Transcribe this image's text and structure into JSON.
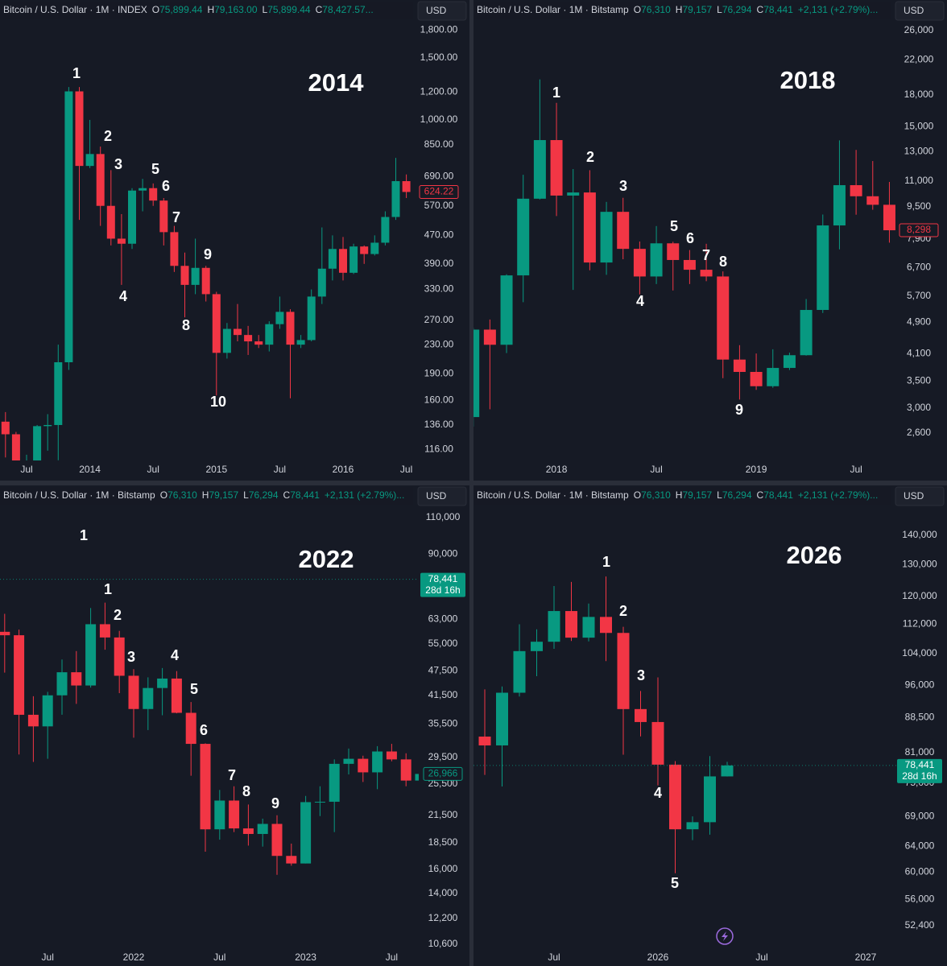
{
  "chart_data": [
    {
      "type": "candlestick",
      "title": "2014",
      "symbol": "Bitcoin / U.S. Dollar · 1M · INDEX",
      "quote": [
        {
          "key": "O",
          "value": "75,899.44"
        },
        {
          "key": "H",
          "value": "79,163.00"
        },
        {
          "key": "L",
          "value": "75,899.44"
        },
        {
          "key": "C",
          "value": "78,427.57..."
        }
      ],
      "currency": "USD",
      "log_scale": true,
      "colors": {
        "up": "#089981",
        "down": "#f23645"
      },
      "ylim": [
        109,
        1890
      ],
      "yticks": [
        {
          "value": 1800,
          "label": "1,800.00"
        },
        {
          "value": 1500,
          "label": "1,500.00"
        },
        {
          "value": 1200,
          "label": "1,200.00"
        },
        {
          "value": 1000,
          "label": "1,000.00"
        },
        {
          "value": 850,
          "label": "850.00"
        },
        {
          "value": 690,
          "label": "690.00"
        },
        {
          "value": 570,
          "label": "570.00"
        },
        {
          "value": 470,
          "label": "470.00"
        },
        {
          "value": 390,
          "label": "390.00"
        },
        {
          "value": 330,
          "label": "330.00"
        },
        {
          "value": 270,
          "label": "270.00"
        },
        {
          "value": 230,
          "label": "230.00"
        },
        {
          "value": 190,
          "label": "190.00"
        },
        {
          "value": 160,
          "label": "160.00"
        },
        {
          "value": 136,
          "label": "136.00"
        },
        {
          "value": 116,
          "label": "116.00"
        }
      ],
      "categories": [
        null,
        null,
        "Jul",
        null,
        null,
        null,
        null,
        null,
        "2014",
        null,
        null,
        null,
        null,
        null,
        "Jul",
        null,
        null,
        null,
        null,
        null,
        "2015",
        null,
        null,
        null,
        null,
        null,
        "Jul",
        null,
        null,
        null,
        null,
        null,
        "2016",
        null,
        null,
        null,
        null,
        null,
        "Jul"
      ],
      "open": [
        139,
        128,
        97,
        106,
        135,
        136,
        205,
        1205,
        740,
        800,
        570,
        460,
        445,
        630,
        640,
        590,
        480,
        385,
        340,
        380,
        320,
        218,
        255,
        245,
        235,
        230,
        263,
        285,
        230,
        237,
        315,
        378,
        430,
        368,
        437,
        416,
        448,
        530,
        670
      ],
      "high": [
        148,
        130,
        112,
        136,
        146,
        230,
        1240,
        1240,
        1000,
        840,
        720,
        540,
        640,
        680,
        660,
        600,
        500,
        420,
        460,
        385,
        325,
        265,
        300,
        260,
        245,
        268,
        315,
        290,
        245,
        330,
        495,
        470,
        465,
        445,
        440,
        470,
        550,
        780,
        700
      ],
      "low": [
        110,
        95,
        65,
        99,
        115,
        108,
        195,
        520,
        730,
        500,
        440,
        340,
        430,
        550,
        570,
        440,
        370,
        275,
        320,
        305,
        165,
        210,
        235,
        215,
        225,
        220,
        255,
        162,
        225,
        235,
        300,
        350,
        350,
        365,
        390,
        412,
        440,
        520,
        600
      ],
      "close": [
        128,
        97,
        106,
        135,
        136,
        205,
        1205,
        740,
        800,
        570,
        460,
        445,
        630,
        640,
        590,
        480,
        385,
        340,
        380,
        320,
        218,
        255,
        245,
        235,
        230,
        263,
        285,
        230,
        237,
        315,
        378,
        430,
        368,
        437,
        416,
        448,
        530,
        670,
        624.22
      ],
      "last_price": {
        "value": 624.22,
        "label": "624.22"
      },
      "annotations": [
        "1",
        "2",
        "3",
        "4",
        "5",
        "6",
        "7",
        "8",
        "9",
        "10"
      ]
    },
    {
      "type": "candlestick",
      "title": "2018",
      "symbol": "Bitcoin / U.S. Dollar · 1M · Bitstamp",
      "quote": [
        {
          "key": "O",
          "value": "76,310"
        },
        {
          "key": "H",
          "value": "79,157"
        },
        {
          "key": "L",
          "value": "76,294"
        },
        {
          "key": "C",
          "value": "78,441"
        }
      ],
      "change": "+2,131 (+2.79%)...",
      "currency": "USD",
      "log_scale": true,
      "colors": {
        "up": "#089981",
        "down": "#f23645"
      },
      "ylim": [
        2244,
        27230
      ],
      "yticks": [
        {
          "value": 26000,
          "label": "26,000"
        },
        {
          "value": 22000,
          "label": "22,000"
        },
        {
          "value": 18000,
          "label": "18,000"
        },
        {
          "value": 15000,
          "label": "15,000"
        },
        {
          "value": 13000,
          "label": "13,000"
        },
        {
          "value": 11000,
          "label": "11,000"
        },
        {
          "value": 9500,
          "label": "9,500"
        },
        {
          "value": 7900,
          "label": "7,900"
        },
        {
          "value": 6700,
          "label": "6,700"
        },
        {
          "value": 5700,
          "label": "5,700"
        },
        {
          "value": 4900,
          "label": "4,900"
        },
        {
          "value": 4100,
          "label": "4,100"
        },
        {
          "value": 3500,
          "label": "3,500"
        },
        {
          "value": 3000,
          "label": "3,000"
        },
        {
          "value": 2600,
          "label": "2,600"
        }
      ],
      "categories": [
        null,
        null,
        null,
        null,
        null,
        "2018",
        null,
        null,
        null,
        null,
        null,
        "Jul",
        null,
        null,
        null,
        null,
        null,
        "2019",
        null,
        null,
        null,
        null,
        null,
        "Jul",
        null,
        null
      ],
      "open": [
        2850,
        4700,
        4310,
        6410,
        9940,
        13900,
        10120,
        10300,
        6900,
        9220,
        7460,
        6370,
        7700,
        7000,
        6620,
        6370,
        3960,
        3690,
        3400,
        3775,
        4060,
        5260,
        8530,
        10740,
        10080,
        9600
      ],
      "high": [
        4750,
        4980,
        6450,
        11400,
        19666,
        17200,
        11780,
        11700,
        9760,
        9990,
        7780,
        8500,
        7770,
        7410,
        7680,
        6560,
        4300,
        4100,
        4200,
        4120,
        5600,
        9080,
        13880,
        13140,
        12330,
        10940
      ],
      "low": [
        2700,
        2980,
        4110,
        5500,
        9900,
        9000,
        5900,
        6600,
        6430,
        7030,
        5750,
        6100,
        5880,
        6100,
        6200,
        3560,
        3150,
        3330,
        3370,
        3730,
        4050,
        5170,
        7440,
        9070,
        9330,
        7730
      ],
      "close": [
        4700,
        4310,
        6410,
        9940,
        13900,
        10120,
        10300,
        6900,
        9220,
        7460,
        6370,
        7700,
        7000,
        6620,
        6370,
        3960,
        3690,
        3400,
        3775,
        4060,
        5260,
        8530,
        10740,
        10080,
        9600,
        8298
      ],
      "last_price": {
        "value": 8298,
        "label": "8,298"
      },
      "annotations": [
        "1",
        "2",
        "3",
        "4",
        "5",
        "6",
        "7",
        "8",
        "9"
      ]
    },
    {
      "type": "candlestick",
      "title": "2022",
      "symbol": "Bitcoin / U.S. Dollar · 1M · Bitstamp",
      "quote": [
        {
          "key": "O",
          "value": "76,310"
        },
        {
          "key": "H",
          "value": "79,157"
        },
        {
          "key": "L",
          "value": "76,294"
        },
        {
          "key": "C",
          "value": "78,441"
        }
      ],
      "change": "+2,131 (+2.79%)...",
      "currency": "USD",
      "log_scale": true,
      "colors": {
        "up": "#089981",
        "down": "#f23645"
      },
      "ylim": [
        10500,
        116500
      ],
      "yticks": [
        {
          "value": 110000,
          "label": "110,000"
        },
        {
          "value": 90000,
          "label": "90,000"
        },
        {
          "value": 63000,
          "label": "63,000"
        },
        {
          "value": 55000,
          "label": "55,000"
        },
        {
          "value": 47500,
          "label": "47,500"
        },
        {
          "value": 41500,
          "label": "41,500"
        },
        {
          "value": 35500,
          "label": "35,500"
        },
        {
          "value": 29500,
          "label": "29,500"
        },
        {
          "value": 25500,
          "label": "25,500"
        },
        {
          "value": 21500,
          "label": "21,500"
        },
        {
          "value": 18500,
          "label": "18,500"
        },
        {
          "value": 16000,
          "label": "16,000"
        },
        {
          "value": 14000,
          "label": "14,000"
        },
        {
          "value": 12200,
          "label": "12,200"
        },
        {
          "value": 10600,
          "label": "10,600"
        }
      ],
      "categories": [
        null,
        null,
        null,
        "Jul",
        null,
        null,
        null,
        null,
        null,
        "2022",
        null,
        null,
        null,
        null,
        null,
        "Jul",
        null,
        null,
        null,
        null,
        null,
        "2023",
        null,
        null,
        null,
        null,
        null,
        "Jul",
        null,
        null
      ],
      "open": [
        58800,
        57700,
        37300,
        35000,
        41500,
        47100,
        43800,
        61300,
        57000,
        46200,
        38500,
        43200,
        45500,
        37700,
        31800,
        19900,
        23300,
        20000,
        19400,
        20500,
        17200,
        16500,
        23100,
        23150,
        28500,
        29300,
        27200,
        30500,
        29200,
        26000
      ],
      "high": [
        64900,
        59500,
        41300,
        42300,
        50500,
        52900,
        67000,
        69000,
        59100,
        47900,
        45800,
        48200,
        47400,
        40000,
        31900,
        24700,
        25200,
        22800,
        21100,
        21500,
        18400,
        23900,
        25200,
        29200,
        31000,
        29800,
        31400,
        31800,
        30200,
        27000
      ],
      "low": [
        47000,
        30000,
        28800,
        29300,
        37300,
        39600,
        43300,
        53300,
        42000,
        32900,
        34300,
        37200,
        37600,
        26700,
        17600,
        18800,
        19600,
        18200,
        18100,
        15500,
        16300,
        16500,
        21400,
        19600,
        26900,
        25800,
        24800,
        28900,
        25200,
        24900
      ],
      "close": [
        57700,
        37300,
        35000,
        41500,
        47100,
        43800,
        61300,
        57000,
        46200,
        38500,
        43200,
        45500,
        37700,
        31800,
        19900,
        23300,
        20000,
        19400,
        20500,
        17200,
        16500,
        23100,
        23150,
        28500,
        29300,
        27200,
        30500,
        29200,
        26000,
        26966
      ],
      "price_line": {
        "value": 78441,
        "label": "78,441",
        "countdown": "28d 16h"
      },
      "last_price": {
        "value": 26966,
        "label": "26,966"
      },
      "annotations": [
        "1",
        "1",
        "2",
        "3",
        "4",
        "5",
        "6",
        "7",
        "8",
        "9"
      ]
    },
    {
      "type": "candlestick",
      "title": "2026",
      "symbol": "Bitcoin / U.S. Dollar · 1M · Bitstamp",
      "quote": [
        {
          "key": "O",
          "value": "76,310"
        },
        {
          "key": "H",
          "value": "79,157"
        },
        {
          "key": "L",
          "value": "76,294"
        },
        {
          "key": "C",
          "value": "78,441"
        }
      ],
      "change": "+2,131 (+2.79%)...",
      "currency": "USD",
      "log_scale": true,
      "colors": {
        "up": "#089981",
        "down": "#f23645"
      },
      "ylim": [
        49810,
        150280
      ],
      "yticks": [
        {
          "value": 140000,
          "label": "140,000"
        },
        {
          "value": 130000,
          "label": "130,000"
        },
        {
          "value": 120000,
          "label": "120,000"
        },
        {
          "value": 112000,
          "label": "112,000"
        },
        {
          "value": 104000,
          "label": "104,000"
        },
        {
          "value": 96000,
          "label": "96,000"
        },
        {
          "value": 88500,
          "label": "88,500"
        },
        {
          "value": 81000,
          "label": "81,000"
        },
        {
          "value": 75000,
          "label": "75,000"
        },
        {
          "value": 69000,
          "label": "69,000"
        },
        {
          "value": 64000,
          "label": "64,000"
        },
        {
          "value": 60000,
          "label": "60,000"
        },
        {
          "value": 56000,
          "label": "56,000"
        },
        {
          "value": 52400,
          "label": "52,400"
        }
      ],
      "categories": [
        null,
        null,
        null,
        null,
        "Jul",
        null,
        null,
        null,
        null,
        null,
        "2026",
        null,
        null,
        null,
        null,
        null,
        "Jul",
        null,
        null,
        null,
        null,
        null,
        "2027"
      ],
      "open": [
        84350,
        82500,
        94200,
        104600,
        107100,
        115700,
        108200,
        114000,
        109500,
        90400,
        87500,
        78600,
        66800,
        68000,
        76310,
        null,
        null,
        null,
        null,
        null,
        null,
        null,
        null
      ],
      "high": [
        95000,
        95700,
        111900,
        110500,
        123200,
        124500,
        117900,
        126200,
        111200,
        94600,
        97900,
        79300,
        69000,
        80300,
        79157,
        null,
        null,
        null,
        null,
        null,
        null,
        null,
        null
      ],
      "low": [
        76600,
        74400,
        93300,
        98200,
        105200,
        107300,
        107200,
        102000,
        80600,
        84400,
        74600,
        59800,
        65000,
        65900,
        76294,
        null,
        null,
        null,
        null,
        null,
        null,
        null,
        null
      ],
      "close": [
        82500,
        94200,
        104600,
        107100,
        115700,
        108200,
        114000,
        109500,
        90400,
        87500,
        78600,
        66800,
        68000,
        76310,
        78441,
        null,
        null,
        null,
        null,
        null,
        null,
        null,
        null
      ],
      "last_price": {
        "value": 78441,
        "label": "78,441",
        "countdown": "28d 16h"
      },
      "annotations": [
        "1",
        "2",
        "3",
        "4",
        "5"
      ]
    }
  ]
}
